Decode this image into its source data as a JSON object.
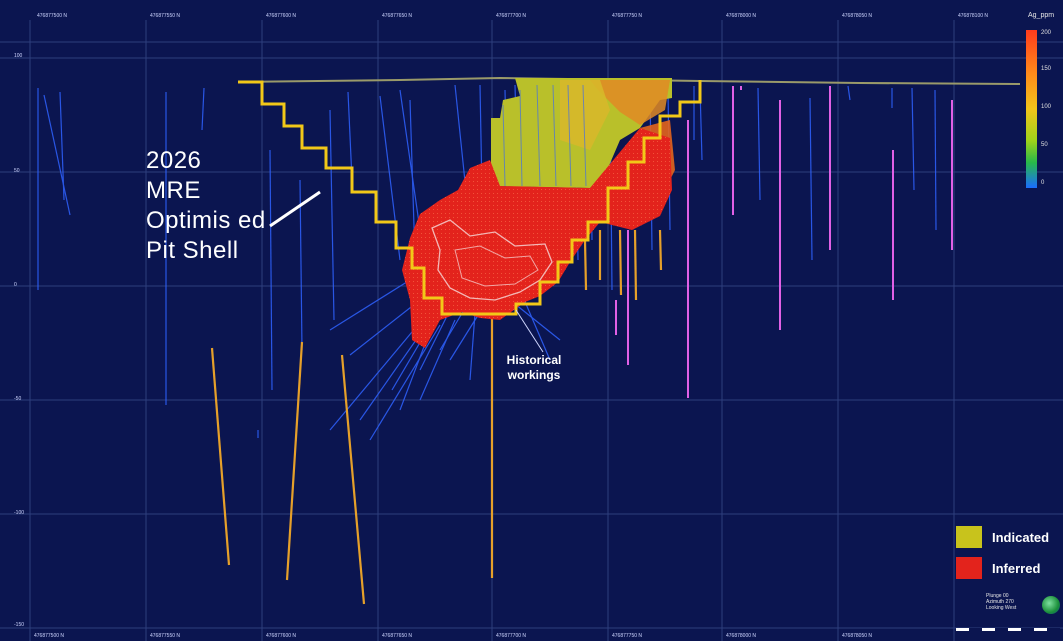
{
  "annotations": {
    "pit_shell_label": [
      "2026",
      "MRE",
      "Optimis ed",
      "Pit Shell"
    ],
    "historical_workings_label": [
      "Historical",
      "workings"
    ]
  },
  "legend": [
    {
      "label": "Indicated",
      "color": "#c8c31c"
    },
    {
      "label": "Inferred",
      "color": "#e3231c"
    }
  ],
  "colorbar": {
    "title": "Ag_ppm",
    "ticks": [
      "200",
      "150",
      "100",
      "50",
      "0"
    ]
  },
  "axes": {
    "top_labels": [
      "476877500 N",
      "476877550 N",
      "476877600 N",
      "476877650 N",
      "476877700 N",
      "476877750 N",
      "476878000 N",
      "476878050 N",
      "476878100 N"
    ],
    "left_labels": [
      "100",
      "50",
      "0",
      "-50",
      "-100",
      "-150"
    ],
    "bottom_labels": [
      "476877500 N",
      "476877550 N",
      "476877600 N",
      "476877650 N",
      "476877700 N",
      "476877750 N",
      "476878000 N",
      "476878050 N"
    ]
  },
  "view_info": [
    "Plunge 00",
    "Azimuth 270",
    "Looking West"
  ],
  "colors": {
    "background": "#0b1550",
    "grid": "#3a4d8c",
    "pit_shell": "#f2c818",
    "drillhole_blue": "#2f62ff",
    "drillhole_orange": "#e6a02a",
    "drillhole_magenta": "#e060e6",
    "topography": "#9a9a6a"
  }
}
